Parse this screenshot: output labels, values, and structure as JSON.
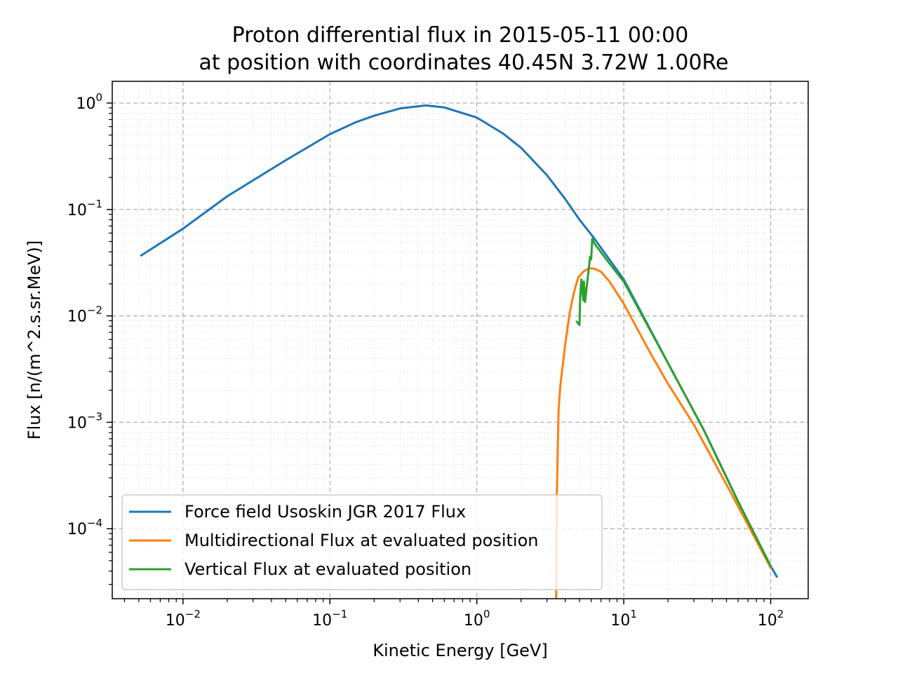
{
  "chart_data": {
    "type": "line",
    "title": "Proton differential flux in 2015-05-11 00:00",
    "subtitle": "at position with coordinates 40.45N 3.72W 1.00Re",
    "xlabel": "Kinetic Energy [GeV]",
    "ylabel": "Flux [n/(m^2.s.sr.MeV)]",
    "xscale": "log",
    "yscale": "log",
    "xlim": [
      0.0033,
      180
    ],
    "ylim": [
      2.2e-05,
      1.6
    ],
    "xticks": [
      {
        "value": 0.01,
        "base": "10",
        "exp": "−2"
      },
      {
        "value": 0.1,
        "base": "10",
        "exp": "−1"
      },
      {
        "value": 1,
        "base": "10",
        "exp": "0"
      },
      {
        "value": 10,
        "base": "10",
        "exp": "1"
      },
      {
        "value": 100,
        "base": "10",
        "exp": "2"
      }
    ],
    "yticks": [
      {
        "value": 0.0001,
        "base": "10",
        "exp": "−4"
      },
      {
        "value": 0.001,
        "base": "10",
        "exp": "−3"
      },
      {
        "value": 0.01,
        "base": "10",
        "exp": "−2"
      },
      {
        "value": 0.1,
        "base": "10",
        "exp": "−1"
      },
      {
        "value": 1,
        "base": "10",
        "exp": "0"
      }
    ],
    "grid": true,
    "legend_position": "lower-left",
    "series": [
      {
        "name": "Force field Usoskin JGR 2017 Flux",
        "color": "#1f77b4",
        "points": [
          [
            0.0052,
            0.037
          ],
          [
            0.01,
            0.066
          ],
          [
            0.02,
            0.133
          ],
          [
            0.05,
            0.29
          ],
          [
            0.1,
            0.51
          ],
          [
            0.15,
            0.66
          ],
          [
            0.2,
            0.76
          ],
          [
            0.3,
            0.89
          ],
          [
            0.45,
            0.95
          ],
          [
            0.6,
            0.91
          ],
          [
            1.0,
            0.73
          ],
          [
            1.5,
            0.52
          ],
          [
            2.0,
            0.38
          ],
          [
            3.0,
            0.21
          ],
          [
            4.0,
            0.125
          ],
          [
            5.0,
            0.08
          ],
          [
            6.2,
            0.055
          ],
          [
            10,
            0.022
          ],
          [
            20,
            0.0036
          ],
          [
            35,
            0.00085
          ],
          [
            60,
            0.00018
          ],
          [
            100,
            4.45e-05
          ],
          [
            110,
            3.55e-05
          ]
        ]
      },
      {
        "name": "Multidirectional Flux at evaluated position",
        "color": "#ff7f0e",
        "points": [
          [
            3.45,
            5.5e-06
          ],
          [
            3.5,
            0.0002
          ],
          [
            3.6,
            0.0013
          ],
          [
            3.7,
            0.0022
          ],
          [
            4.0,
            0.0055
          ],
          [
            4.3,
            0.011
          ],
          [
            4.6,
            0.017
          ],
          [
            4.9,
            0.023
          ],
          [
            5.3,
            0.026
          ],
          [
            5.8,
            0.028
          ],
          [
            6.3,
            0.0278
          ],
          [
            7.0,
            0.026
          ],
          [
            8.0,
            0.021
          ],
          [
            10,
            0.013
          ],
          [
            15,
            0.0046
          ],
          [
            20,
            0.0023
          ],
          [
            30,
            0.00095
          ],
          [
            50,
            0.00026
          ],
          [
            100,
            4.3e-05
          ]
        ]
      },
      {
        "name": "Vertical Flux at evaluated position",
        "color": "#2ca02c",
        "points": [
          [
            4.8,
            0.0088
          ],
          [
            5.0,
            0.0082
          ],
          [
            5.05,
            0.015
          ],
          [
            5.15,
            0.022
          ],
          [
            5.3,
            0.014
          ],
          [
            5.35,
            0.021
          ],
          [
            5.45,
            0.0135
          ],
          [
            5.9,
            0.036
          ],
          [
            6.0,
            0.034
          ],
          [
            6.1,
            0.053
          ],
          [
            6.3,
            0.048
          ],
          [
            8.0,
            0.031
          ],
          [
            10,
            0.021
          ],
          [
            20,
            0.0036
          ],
          [
            35,
            0.00085
          ],
          [
            60,
            0.00018
          ],
          [
            100,
            4.45e-05
          ]
        ]
      }
    ]
  }
}
